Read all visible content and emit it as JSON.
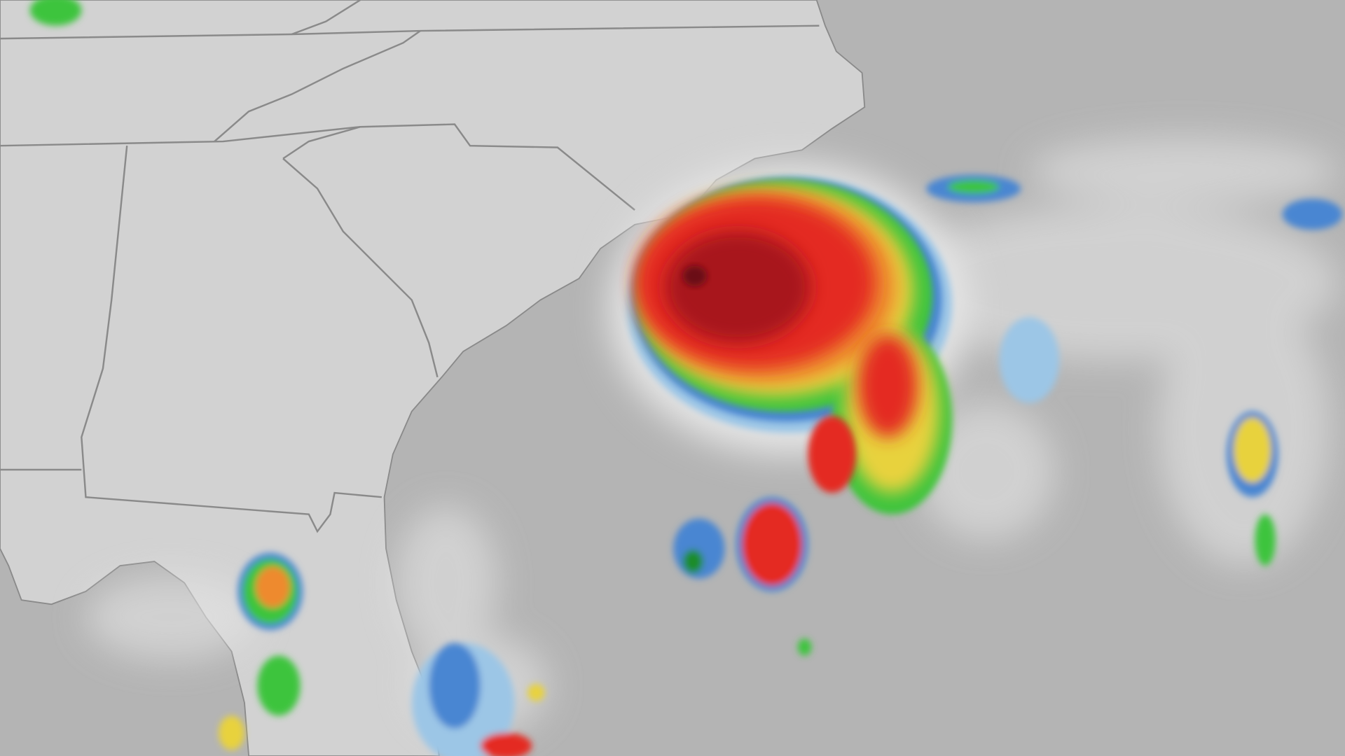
{
  "map": {
    "type": "weather-radar",
    "basemap": {
      "land_color": "#d2d2d2",
      "ocean_color": "#b4b4b4",
      "border_color": "#8a8a8a"
    },
    "radar_palette": {
      "light": "#e6e6e6",
      "light_blue": "#9cc6e6",
      "blue": "#4a86d2",
      "green": "#3cc43c",
      "dark_green": "#1e8c2a",
      "yellow": "#e8d23c",
      "orange": "#ee8a2e",
      "red": "#e42a22",
      "dark_red": "#a8161a",
      "maroon": "#6a1014"
    }
  }
}
